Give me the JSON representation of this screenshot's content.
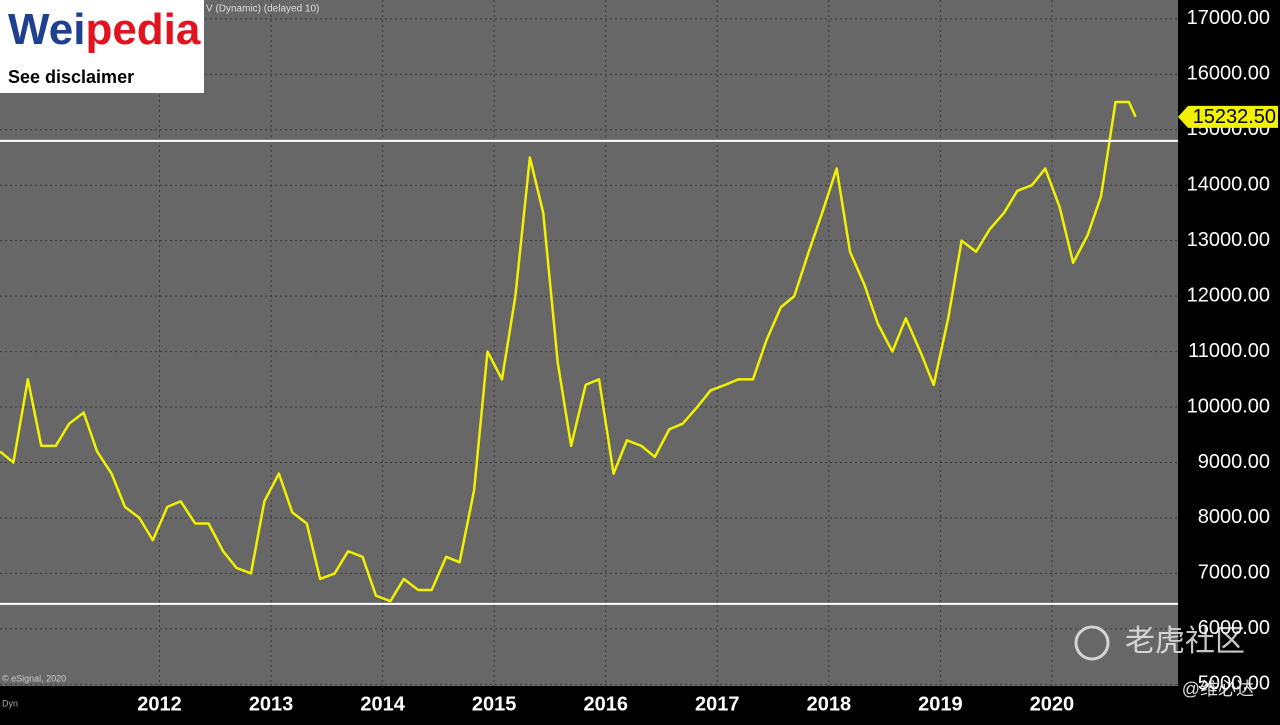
{
  "chart_data": {
    "type": "line",
    "header": "V (Dynamic) (delayed 10)",
    "logo": {
      "left": "Wei",
      "right": "pedia",
      "note": "See disclaimer"
    },
    "source": "© eSignal, 2020",
    "mode": "Dyn",
    "watermark": "老虎社区",
    "handle": "@维必达",
    "x": [
      2010.57,
      2010.69,
      2010.82,
      2010.94,
      2011.07,
      2011.19,
      2011.32,
      2011.44,
      2011.57,
      2011.69,
      2011.82,
      2011.94,
      2012.07,
      2012.19,
      2012.32,
      2012.44,
      2012.57,
      2012.69,
      2012.82,
      2012.94,
      2013.07,
      2013.19,
      2013.32,
      2013.44,
      2013.57,
      2013.69,
      2013.82,
      2013.94,
      2014.07,
      2014.19,
      2014.32,
      2014.44,
      2014.57,
      2014.69,
      2014.82,
      2014.94,
      2015.07,
      2015.19,
      2015.32,
      2015.44,
      2015.57,
      2015.69,
      2015.82,
      2015.94,
      2016.07,
      2016.19,
      2016.32,
      2016.44,
      2016.57,
      2016.69,
      2016.82,
      2016.94,
      2017.07,
      2017.19,
      2017.32,
      2017.44,
      2017.57,
      2017.69,
      2017.82,
      2017.94,
      2018.07,
      2018.19,
      2018.32,
      2018.44,
      2018.57,
      2018.69,
      2018.82,
      2018.94,
      2019.07,
      2019.19,
      2019.32,
      2019.44,
      2019.57,
      2019.69,
      2019.82,
      2019.94,
      2020.07,
      2020.19,
      2020.32,
      2020.44,
      2020.57,
      2020.69,
      2020.75
    ],
    "series": [
      {
        "color": "#f2f200",
        "values": [
          9200,
          9000,
          10500,
          9300,
          9300,
          9700,
          9900,
          9200,
          8800,
          8200,
          8000,
          7600,
          8200,
          8300,
          7900,
          7900,
          7400,
          7100,
          7000,
          8300,
          8800,
          8100,
          7900,
          6900,
          7000,
          7400,
          7300,
          6600,
          6500,
          6900,
          6700,
          6700,
          7300,
          7200,
          8500,
          11000,
          10500,
          12000,
          14500,
          13500,
          10800,
          9300,
          10400,
          10500,
          8800,
          9400,
          9300,
          9100,
          9600,
          9700,
          10000,
          10300,
          10400,
          10500,
          10500,
          11200,
          11800,
          12000,
          12800,
          13500,
          14300,
          12800,
          12200,
          11500,
          11000,
          11600,
          11000,
          10400,
          11600,
          13000,
          12800,
          13200,
          13500,
          13900,
          14000,
          14300,
          13600,
          12600,
          13100,
          13800,
          15500,
          15500,
          15232.5
        ]
      }
    ],
    "last_price": {
      "value": 15232.5,
      "label": "15232.50"
    },
    "hlines": [
      14800,
      6450
    ],
    "xlim": [
      2010.57,
      2021.13
    ],
    "xticks": [
      2012,
      2013,
      2014,
      2015,
      2016,
      2017,
      2018,
      2019,
      2020
    ],
    "ylim": [
      4970,
      17340
    ],
    "yticks": [
      {
        "value": 5000,
        "label": "5000.00"
      },
      {
        "value": 6000,
        "label": "6000.00"
      },
      {
        "value": 7000,
        "label": "7000.00"
      },
      {
        "value": 8000,
        "label": "8000.00"
      },
      {
        "value": 9000,
        "label": "9000.00"
      },
      {
        "value": 10000,
        "label": "10000.00"
      },
      {
        "value": 11000,
        "label": "11000.00"
      },
      {
        "value": 12000,
        "label": "12000.00"
      },
      {
        "value": 13000,
        "label": "13000.00"
      },
      {
        "value": 14000,
        "label": "14000.00"
      },
      {
        "value": 15000,
        "label": "15000.00"
      },
      {
        "value": 16000,
        "label": "16000.00"
      },
      {
        "value": 17000,
        "label": "17000.00"
      }
    ],
    "grid": true
  }
}
